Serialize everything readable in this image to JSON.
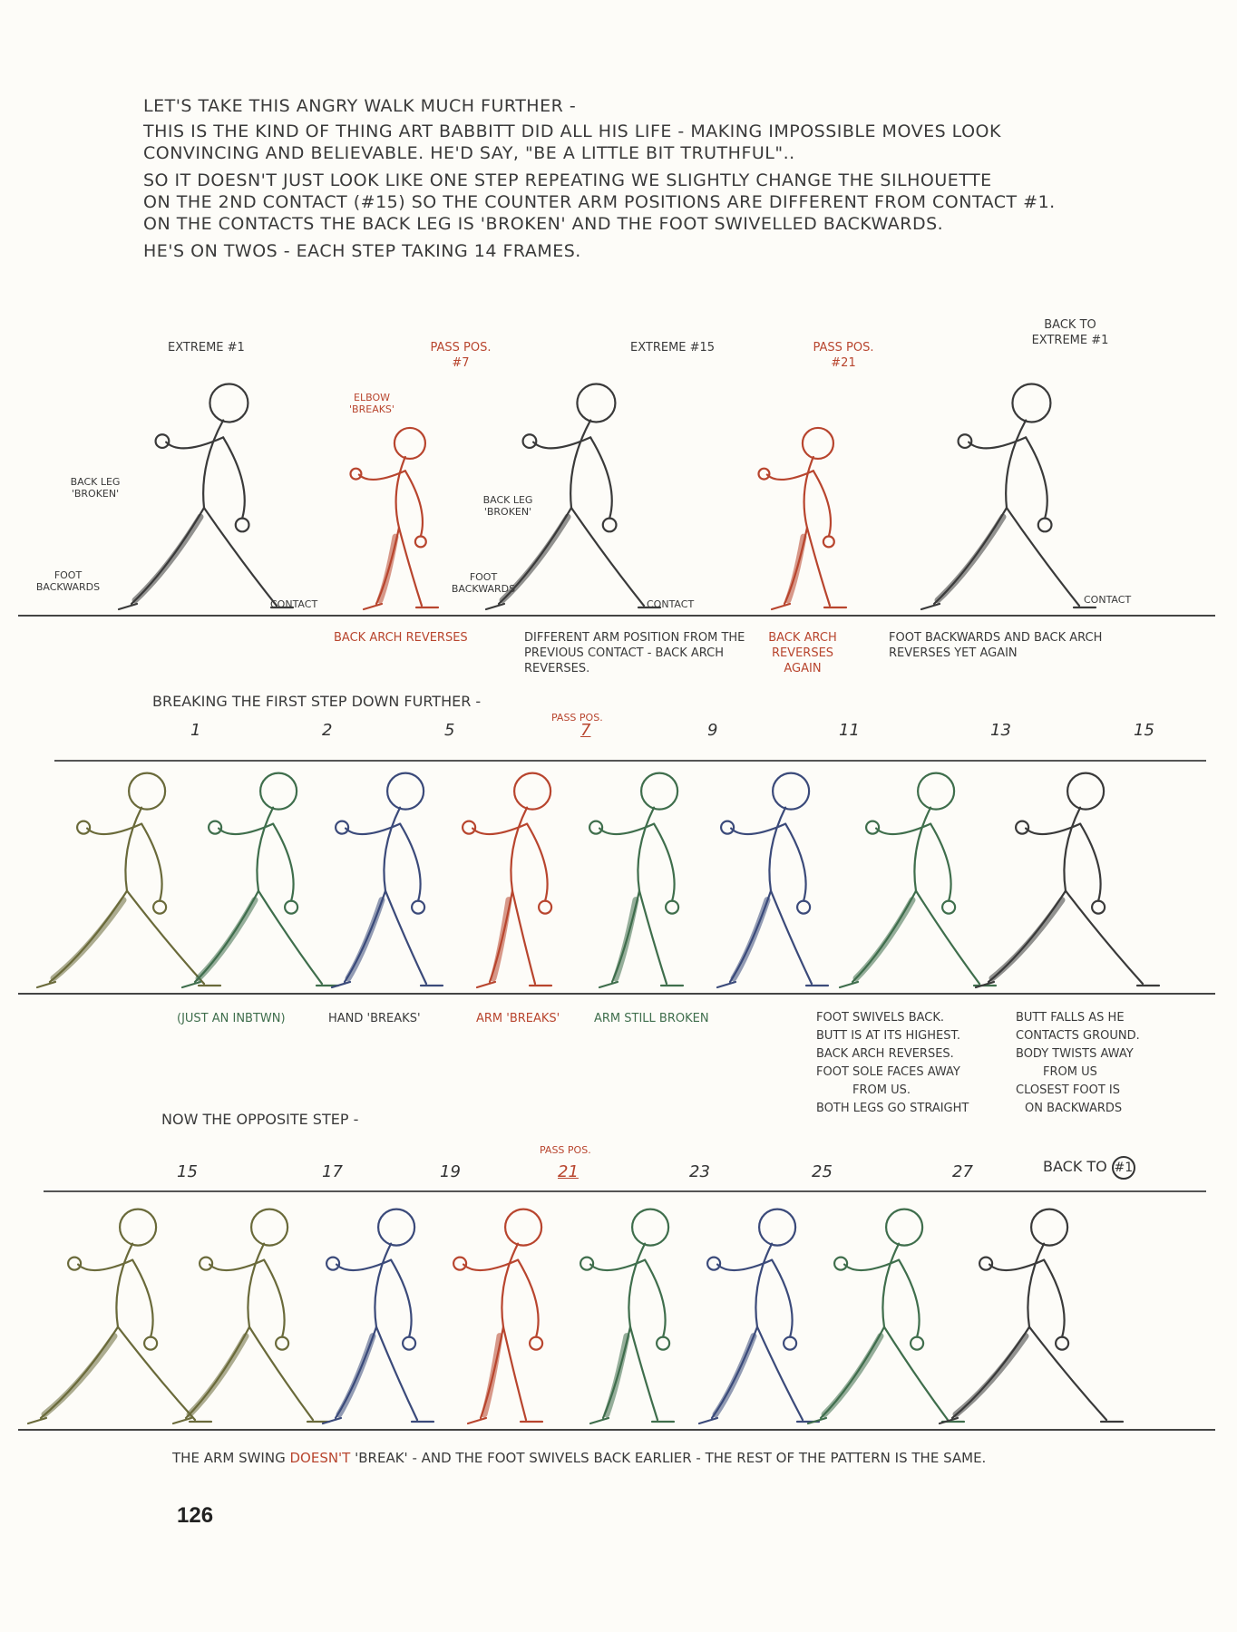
{
  "intro": {
    "line1": "LET'S TAKE THIS ANGRY WALK MUCH FURTHER -",
    "line2": "THIS IS THE KIND OF THING ART BABBITT DID ALL HIS LIFE - MAKING IMPOSSIBLE MOVES LOOK",
    "line3": "CONVINCING and BELIEVABLE.  HE'D SAY, \"BE A LITTLE BIT TRUTHFUL\"..",
    "line4": "SO IT DOESN'T JUST LOOK LIKE ONE STEP REPEATING  WE SLIGHTLY CHANGE The SILHOUETTE",
    "line5": "ON the 2ND CONTACT (#15) SO THE COUNTER ARM POSITIONS ARE DIFFERENT FROM CONTACT #1.",
    "line6": "ON The CONTACTS The BACK LEG IS 'BROKEN' AND The FOOT SWIVELLED BACKWARDS.",
    "line7": "HE'S ON TWOS - EACH STEP TAKING 14 FRAMES."
  },
  "row1": {
    "headers": [
      "EXTREME #1",
      "PASS POS. #7",
      "EXTREME #15",
      "PASS POS. #21",
      "BACK TO EXTREME #1"
    ],
    "side_note_left": "BACK LEG 'BROKEN'",
    "foot_note_left": "FOOT BACKWARDS",
    "elbow_note": "ELBOW 'BREAKS'",
    "back_leg_note_mid": "BACK LEG 'BROKEN'",
    "foot_note_mid": "FOOT BACKWARDS",
    "contact_1": "CONTACT",
    "contact_2": "CONTACT",
    "contact_3": "CONTACT",
    "captions": [
      "BACK ARCH REVERSES",
      "DIFFERENT ARM POSITION FROM THE PREVIOUS CONTACT - BACK ARCH REVERSES.",
      "BACK ARCH REVERSES AGAIN",
      "FOOT BACKWARDS and BACK ARCH REVERSES YET AGAIN"
    ]
  },
  "row2": {
    "title": "BREAKING The FIRST STEP DOWN FURTHER -",
    "pass_label": "PASS POS.",
    "frames": [
      "1",
      "2",
      "5",
      "7",
      "9",
      "11",
      "13",
      "15"
    ],
    "captions": [
      "(JUST AN INBTWN)",
      "HAND 'BREAKS'",
      "ARM 'BREAKS'",
      "ARM STILL BROKEN"
    ],
    "note_a": [
      "FOOT SWIVELS BACK.",
      "BUTT IS AT ITS HIGHEST.",
      "BACK ARCH REVERSES.",
      "FOOT SOLE FACES AWAY",
      "FROM US.",
      "BOTH LEGS GO STRAIGHT"
    ],
    "note_b": [
      "BUTT FALLS AS HE",
      "CONTACTS GROUND.",
      "BODY TWISTS AWAY",
      "FROM US",
      "CLOSEST FOOT IS",
      "ON BACKWARDS"
    ]
  },
  "row3": {
    "title": "NOW the OPPOSITE STEP -",
    "pass_label": "PASS POS.",
    "frames": [
      "15",
      "17",
      "19",
      "21",
      "23",
      "25",
      "27"
    ],
    "back_to": "BACK TO",
    "back_to_num": "#1",
    "caption_a": "The ARM SWING",
    "caption_b": "DOESN'T",
    "caption_c": "'BREAK' -  AND the FOOT SWIVELS BACK EARLIER  - THE REST OF the PATTERN IS the SAME."
  },
  "page_number": "126",
  "colors": {
    "ink": "#3a3a3a",
    "red": "#b8452e",
    "green": "#3f6e4c",
    "blue": "#3b4a7a",
    "olive": "#6a6a3a"
  }
}
